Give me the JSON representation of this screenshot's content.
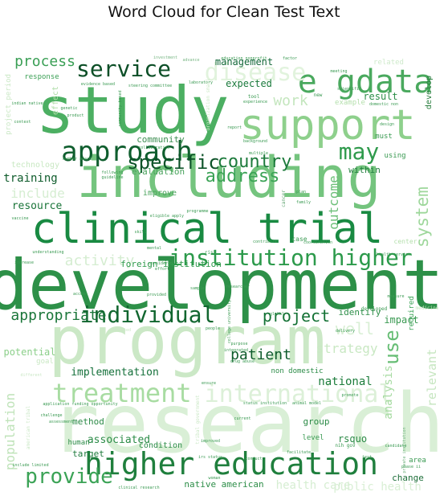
{
  "chart_data": {
    "type": "wordcloud",
    "title": "Word Cloud for Clean Test Text",
    "colormap": "Greens",
    "background": "#ffffff",
    "words": [
      {
        "text": "research",
        "weight": 100,
        "color": "#d9efd6"
      },
      {
        "text": "development",
        "weight": 82,
        "color": "#2d9048"
      },
      {
        "text": "program",
        "weight": 80,
        "color": "#cbe8c6"
      },
      {
        "text": "study",
        "weight": 78,
        "color": "#4caf62"
      },
      {
        "text": "including",
        "weight": 72,
        "color": "#74c47e"
      },
      {
        "text": "clinical trial",
        "weight": 55,
        "color": "#198a42"
      },
      {
        "text": "support",
        "weight": 50,
        "color": "#8ed08c"
      },
      {
        "text": "e gdata",
        "weight": 42,
        "color": "#4aa95e"
      },
      {
        "text": "higher education",
        "weight": 40,
        "color": "#1f7f3d"
      },
      {
        "text": "approach",
        "weight": 38,
        "color": "#0f5e2e"
      },
      {
        "text": "treatment",
        "weight": 34,
        "color": "#a8dca2"
      },
      {
        "text": "individual",
        "weight": 32,
        "color": "#11662f"
      },
      {
        "text": "disease",
        "weight": 32,
        "color": "#e1f3dd"
      },
      {
        "text": "institution higher",
        "weight": 30,
        "color": "#2c9a4b"
      },
      {
        "text": "international",
        "weight": 30,
        "color": "#dcf0d8"
      },
      {
        "text": "service",
        "weight": 28,
        "color": "#0c4f27"
      },
      {
        "text": "may",
        "weight": 28,
        "color": "#2f9a4c"
      },
      {
        "text": "provide",
        "weight": 26,
        "color": "#3ba356"
      },
      {
        "text": "specific",
        "weight": 25,
        "color": "#0d5329"
      },
      {
        "text": "country",
        "weight": 22,
        "color": "#1c7a3b"
      },
      {
        "text": "address",
        "weight": 22,
        "color": "#3ba356"
      },
      {
        "text": "system",
        "weight": 22,
        "color": "#9ed79b"
      },
      {
        "text": "use",
        "weight": 22,
        "color": "#66bd74"
      },
      {
        "text": "process",
        "weight": 20,
        "color": "#3a9f55"
      },
      {
        "text": "project",
        "weight": 20,
        "color": "#137134"
      },
      {
        "text": "appropriate",
        "weight": 19,
        "color": "#1b763a"
      },
      {
        "text": "patient",
        "weight": 18,
        "color": "#0e5b2c"
      },
      {
        "text": "well",
        "weight": 18,
        "color": "#d9efd5"
      },
      {
        "text": "work",
        "weight": 18,
        "color": "#c4e6be"
      },
      {
        "text": "outcome",
        "weight": 17,
        "color": "#6cbf78"
      },
      {
        "text": "activity",
        "weight": 17,
        "color": "#d5edd1"
      },
      {
        "text": "population",
        "weight": 16,
        "color": "#bfe3b9"
      },
      {
        "text": "include",
        "weight": 16,
        "color": "#d6eed2"
      },
      {
        "text": "strategy",
        "weight": 16,
        "color": "#c9e8c3"
      },
      {
        "text": "relevant",
        "weight": 15,
        "color": "#c6e6c0"
      },
      {
        "text": "health care",
        "weight": 15,
        "color": "#d6eed2"
      },
      {
        "text": "public health",
        "weight": 15,
        "color": "#d9efd5"
      },
      {
        "text": "analysis",
        "weight": 14,
        "color": "#a7dba2"
      },
      {
        "text": "implementation",
        "weight": 13,
        "color": "#14703a"
      },
      {
        "text": "national",
        "weight": 13,
        "color": "#1d7d3c"
      },
      {
        "text": "associated",
        "weight": 12,
        "color": "#2c8c48"
      },
      {
        "text": "training",
        "weight": 12,
        "color": "#0f5c2c"
      },
      {
        "text": "resource",
        "weight": 12,
        "color": "#1a7539"
      },
      {
        "text": "management",
        "weight": 12,
        "color": "#14693a"
      },
      {
        "text": "result",
        "weight": 12,
        "color": "#2c8e48"
      },
      {
        "text": "expected",
        "weight": 12,
        "color": "#1a7a3c"
      },
      {
        "text": "potential",
        "weight": 12,
        "color": "#8ccf8a"
      },
      {
        "text": "foreign institution",
        "weight": 11,
        "color": "#2e9a4b"
      },
      {
        "text": "community",
        "weight": 11,
        "color": "#3e8f53"
      },
      {
        "text": "evaluation",
        "weight": 11,
        "color": "#4aa35d"
      },
      {
        "text": "within",
        "weight": 11,
        "color": "#237f3f"
      },
      {
        "text": "identify",
        "weight": 11,
        "color": "#2f8f4a"
      },
      {
        "text": "impact",
        "weight": 11,
        "color": "#3b9a53"
      },
      {
        "text": "rsquo",
        "weight": 11,
        "color": "#2b8a46"
      },
      {
        "text": "target",
        "weight": 11,
        "color": "#1c7a3b"
      },
      {
        "text": "method",
        "weight": 11,
        "color": "#2b8a46"
      },
      {
        "text": "group",
        "weight": 11,
        "color": "#2b8a46"
      },
      {
        "text": "native american",
        "weight": 10,
        "color": "#2e8e49"
      },
      {
        "text": "change",
        "weight": 10,
        "color": "#1e6f3a"
      },
      {
        "text": "develop",
        "weight": 10,
        "color": "#2b7f40"
      },
      {
        "text": "improve",
        "weight": 10,
        "color": "#4aa35d"
      },
      {
        "text": "condition",
        "weight": 10,
        "color": "#2c8c48"
      },
      {
        "text": "technology",
        "weight": 10,
        "color": "#c9e8c3"
      },
      {
        "text": "effect",
        "weight": 10,
        "color": "#aedca6"
      },
      {
        "text": "response",
        "weight": 9,
        "color": "#3ca056"
      },
      {
        "text": "human",
        "weight": 9,
        "color": "#2b8a46"
      },
      {
        "text": "level",
        "weight": 9,
        "color": "#3a9a52"
      },
      {
        "text": "area",
        "weight": 9,
        "color": "#3a9a52"
      },
      {
        "text": "must",
        "weight": 9,
        "color": "#3a9a52"
      },
      {
        "text": "using",
        "weight": 9,
        "color": "#3a9a52"
      },
      {
        "text": "required",
        "weight": 9,
        "color": "#3ba356"
      },
      {
        "text": "non domestic",
        "weight": 9,
        "color": "#2c8c48"
      },
      {
        "text": "example",
        "weight": 9,
        "color": "#b6e0ae"
      },
      {
        "text": "goal",
        "weight": 9,
        "color": "#c9e8c3"
      },
      {
        "text": "related",
        "weight": 9,
        "color": "#cfeacb"
      },
      {
        "text": "case",
        "weight": 8,
        "color": "#3a9a52"
      },
      {
        "text": "center",
        "weight": 8,
        "color": "#b6e0ae"
      },
      {
        "text": "cancer",
        "weight": 6,
        "color": "#66a877"
      },
      {
        "text": "tribal government",
        "weight": 6,
        "color": "#cbe8c6"
      },
      {
        "text": "american tribal",
        "weight": 6,
        "color": "#cbe8c6"
      },
      {
        "text": "developed",
        "weight": 6,
        "color": "#3a9a52"
      },
      {
        "text": "tool",
        "weight": 6,
        "color": "#3a9a52"
      },
      {
        "text": "new",
        "weight": 6,
        "color": "#3a9a52"
      },
      {
        "text": "nih gov",
        "weight": 6,
        "color": "#3a9a52"
      },
      {
        "text": "risk",
        "weight": 6,
        "color": "#3a9a52"
      },
      {
        "text": "medicine",
        "weight": 6,
        "color": "#c9e8c3"
      },
      {
        "text": "private institution",
        "weight": 5,
        "color": "#6fb27d"
      },
      {
        "text": "laboratory",
        "weight": 5,
        "color": "#3a9a52"
      },
      {
        "text": "number award",
        "weight": 5,
        "color": "#3a9a52"
      },
      {
        "text": "eligible apply",
        "weight": 5,
        "color": "#3a9a52"
      },
      {
        "text": "investment",
        "weight": 5,
        "color": "#7bb887"
      },
      {
        "text": "advance",
        "weight": 5,
        "color": "#7bb887"
      },
      {
        "text": "factor",
        "weight": 5,
        "color": "#3a9a52"
      },
      {
        "text": "programme",
        "weight": 5,
        "color": "#3a9a52"
      },
      {
        "text": "researcher",
        "weight": 5,
        "color": "#3a9a52"
      },
      {
        "text": "family",
        "weight": 5,
        "color": "#3a9a52"
      },
      {
        "text": "plan",
        "weight": 5,
        "color": "#3a9a52"
      },
      {
        "text": "context",
        "weight": 5,
        "color": "#3a9a52"
      },
      {
        "text": "understanding",
        "weight": 5,
        "color": "#3a9a52"
      },
      {
        "text": "increase",
        "weight": 5,
        "color": "#3a9a52"
      },
      {
        "text": "vaccine",
        "weight": 5,
        "color": "#3a9a52"
      },
      {
        "text": "access",
        "weight": 5,
        "color": "#3a9a52"
      },
      {
        "text": "provided",
        "weight": 5,
        "color": "#3a9a52"
      },
      {
        "text": "sample",
        "weight": 5,
        "color": "#3a9a52"
      },
      {
        "text": "considered",
        "weight": 5,
        "color": "#3a9a52"
      },
      {
        "text": "skill",
        "weight": 5,
        "color": "#3a9a52"
      },
      {
        "text": "mental",
        "weight": 5,
        "color": "#3a9a52"
      },
      {
        "text": "contribute",
        "weight": 5,
        "color": "#3a9a52"
      },
      {
        "text": "coordination",
        "weight": 5,
        "color": "#3a9a52"
      },
      {
        "text": "measure",
        "weight": 5,
        "color": "#3a9a52"
      },
      {
        "text": "delivery",
        "weight": 5,
        "color": "#3a9a52"
      },
      {
        "text": "people",
        "weight": 5,
        "color": "#3a9a52"
      },
      {
        "text": "purpose",
        "weight": 5,
        "color": "#3a9a52"
      },
      {
        "text": "integrated",
        "weight": 5,
        "color": "#3a9a52"
      },
      {
        "text": "drug abuse",
        "weight": 5,
        "color": "#3a9a52"
      },
      {
        "text": "ensure",
        "weight": 5,
        "color": "#3a9a52"
      },
      {
        "text": "promote",
        "weight": 5,
        "color": "#3a9a52"
      },
      {
        "text": "status institution",
        "weight": 5,
        "color": "#3a9a52"
      },
      {
        "text": "animal model",
        "weight": 5,
        "color": "#3a9a52"
      },
      {
        "text": "irs status",
        "weight": 5,
        "color": "#3a9a52"
      },
      {
        "text": "woman",
        "weight": 5,
        "color": "#3a9a52"
      },
      {
        "text": "improved",
        "weight": 5,
        "color": "#3a9a52"
      },
      {
        "text": "current",
        "weight": 5,
        "color": "#3a9a52"
      },
      {
        "text": "conduct",
        "weight": 5,
        "color": "#3a9a52"
      },
      {
        "text": "facilitate",
        "weight": 5,
        "color": "#3a9a52"
      },
      {
        "text": "include limited",
        "weight": 5,
        "color": "#3a9a52"
      },
      {
        "text": "effort",
        "weight": 5,
        "color": "#3a9a52"
      },
      {
        "text": "evidence based",
        "weight": 5,
        "color": "#3a9a52"
      },
      {
        "text": "application funding opportunity",
        "weight": 5,
        "color": "#3a9a52"
      },
      {
        "text": "indian native",
        "weight": 5,
        "color": "#3a9a52"
      },
      {
        "text": "genetic",
        "weight": 5,
        "color": "#3a9a52"
      },
      {
        "text": "product",
        "weight": 5,
        "color": "#3a9a52"
      },
      {
        "text": "clinical research",
        "weight": 5,
        "color": "#3a9a52"
      },
      {
        "text": "health service",
        "weight": 5,
        "color": "#3a9a52"
      },
      {
        "text": "guideline",
        "weight": 5,
        "color": "#3a9a52"
      },
      {
        "text": "following",
        "weight": 5,
        "color": "#3a9a52"
      },
      {
        "text": "collaboration",
        "weight": 5,
        "color": "#3a9a52"
      },
      {
        "text": "background",
        "weight": 5,
        "color": "#3a9a52"
      },
      {
        "text": "multiple",
        "weight": 5,
        "color": "#3a9a52"
      },
      {
        "text": "report",
        "weight": 5,
        "color": "#3a9a52"
      },
      {
        "text": "experience",
        "weight": 5,
        "color": "#3a9a52"
      },
      {
        "text": "scientific",
        "weight": 5,
        "color": "#3a9a52"
      },
      {
        "text": "design",
        "weight": 5,
        "color": "#3a9a52"
      },
      {
        "text": "domestic non",
        "weight": 5,
        "color": "#3a9a52"
      },
      {
        "text": "meeting",
        "weight": 5,
        "color": "#3a9a52"
      },
      {
        "text": "test",
        "weight": 5,
        "color": "#3a9a52"
      },
      {
        "text": "phase ii",
        "weight": 5,
        "color": "#3a9a52"
      },
      {
        "text": "education nonprofit",
        "weight": 5,
        "color": "#3a9a52"
      },
      {
        "text": "project period",
        "weight": 6,
        "color": "#cbe8c6"
      },
      {
        "text": "organization small",
        "weight": 5,
        "color": "#cbe8c6"
      },
      {
        "text": "college university",
        "weight": 5,
        "color": "#3a9a52"
      },
      {
        "text": "community based",
        "weight": 5,
        "color": "#3a9a52"
      },
      {
        "text": "steering committee",
        "weight": 5,
        "color": "#3a9a52"
      },
      {
        "text": "candidate",
        "weight": 5,
        "color": "#3a9a52"
      },
      {
        "text": "global",
        "weight": 5,
        "color": "#3a9a52"
      },
      {
        "text": "challenge",
        "weight": 5,
        "color": "#3a9a52"
      },
      {
        "text": "assessment",
        "weight": 5,
        "color": "#3a9a52"
      },
      {
        "text": "proposed",
        "weight": 5,
        "color": "#cbe8c6"
      },
      {
        "text": "different",
        "weight": 5,
        "color": "#cbe8c6"
      }
    ]
  }
}
